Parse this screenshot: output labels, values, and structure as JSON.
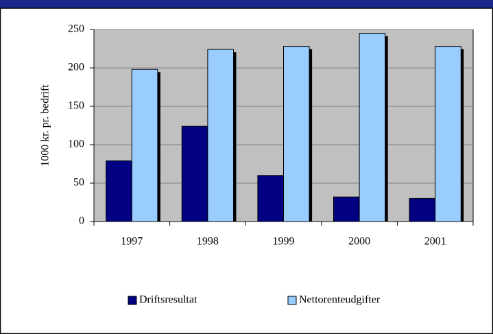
{
  "chart_data": {
    "type": "bar",
    "categories": [
      "1997",
      "1998",
      "1999",
      "2000",
      "2001"
    ],
    "series": [
      {
        "name": "Driftsresultat",
        "color": "#000080",
        "values": [
          79,
          124,
          60,
          32,
          30
        ]
      },
      {
        "name": "Nettorenteudgifter",
        "color": "#99ccff",
        "values": [
          198,
          224,
          228,
          245,
          228
        ]
      }
    ],
    "y_label": "1000 kr. pr. bedrift",
    "ylim": [
      0,
      250
    ],
    "yticks": [
      0,
      50,
      100,
      150,
      200,
      250
    ],
    "grid": true,
    "legend": "bottom"
  }
}
